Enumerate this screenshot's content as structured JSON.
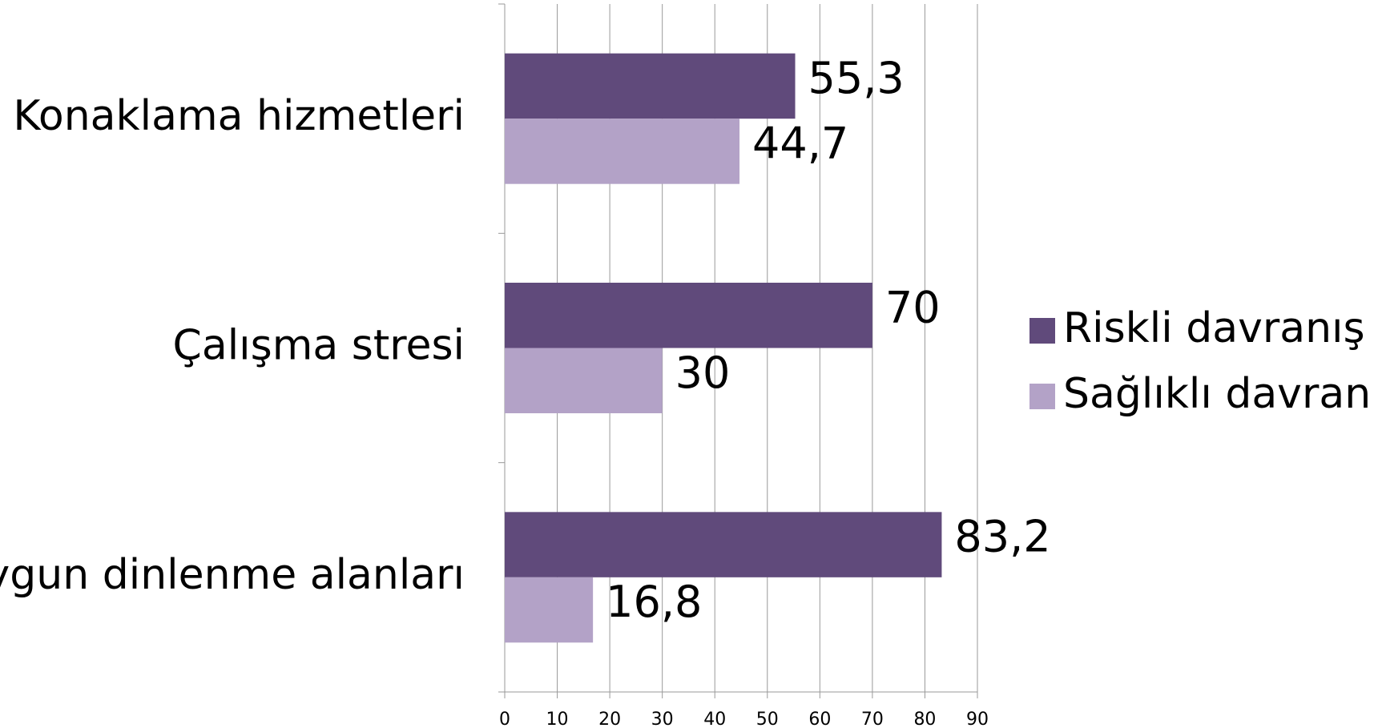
{
  "chart_data": {
    "type": "bar",
    "orientation": "horizontal",
    "categories": [
      "Konaklama hizmetleri",
      "Çalışma stresi",
      "Uygun dinlenme alanları"
    ],
    "series": [
      {
        "name": "Riskli davranış",
        "color": "#604a7b",
        "values": [
          55.3,
          70,
          83.2
        ],
        "value_labels": [
          "55,3",
          "70",
          "83,2"
        ]
      },
      {
        "name": "Sağlıklı davranış",
        "color": "#b3a2c7",
        "values": [
          44.7,
          30,
          16.8
        ],
        "value_labels": [
          "44,7",
          "30",
          "16,8"
        ]
      }
    ],
    "xlim": [
      0,
      90
    ],
    "xticks": [
      0,
      10,
      20,
      30,
      40,
      50,
      60,
      70,
      80,
      90
    ],
    "grid": true,
    "legend": "right"
  }
}
